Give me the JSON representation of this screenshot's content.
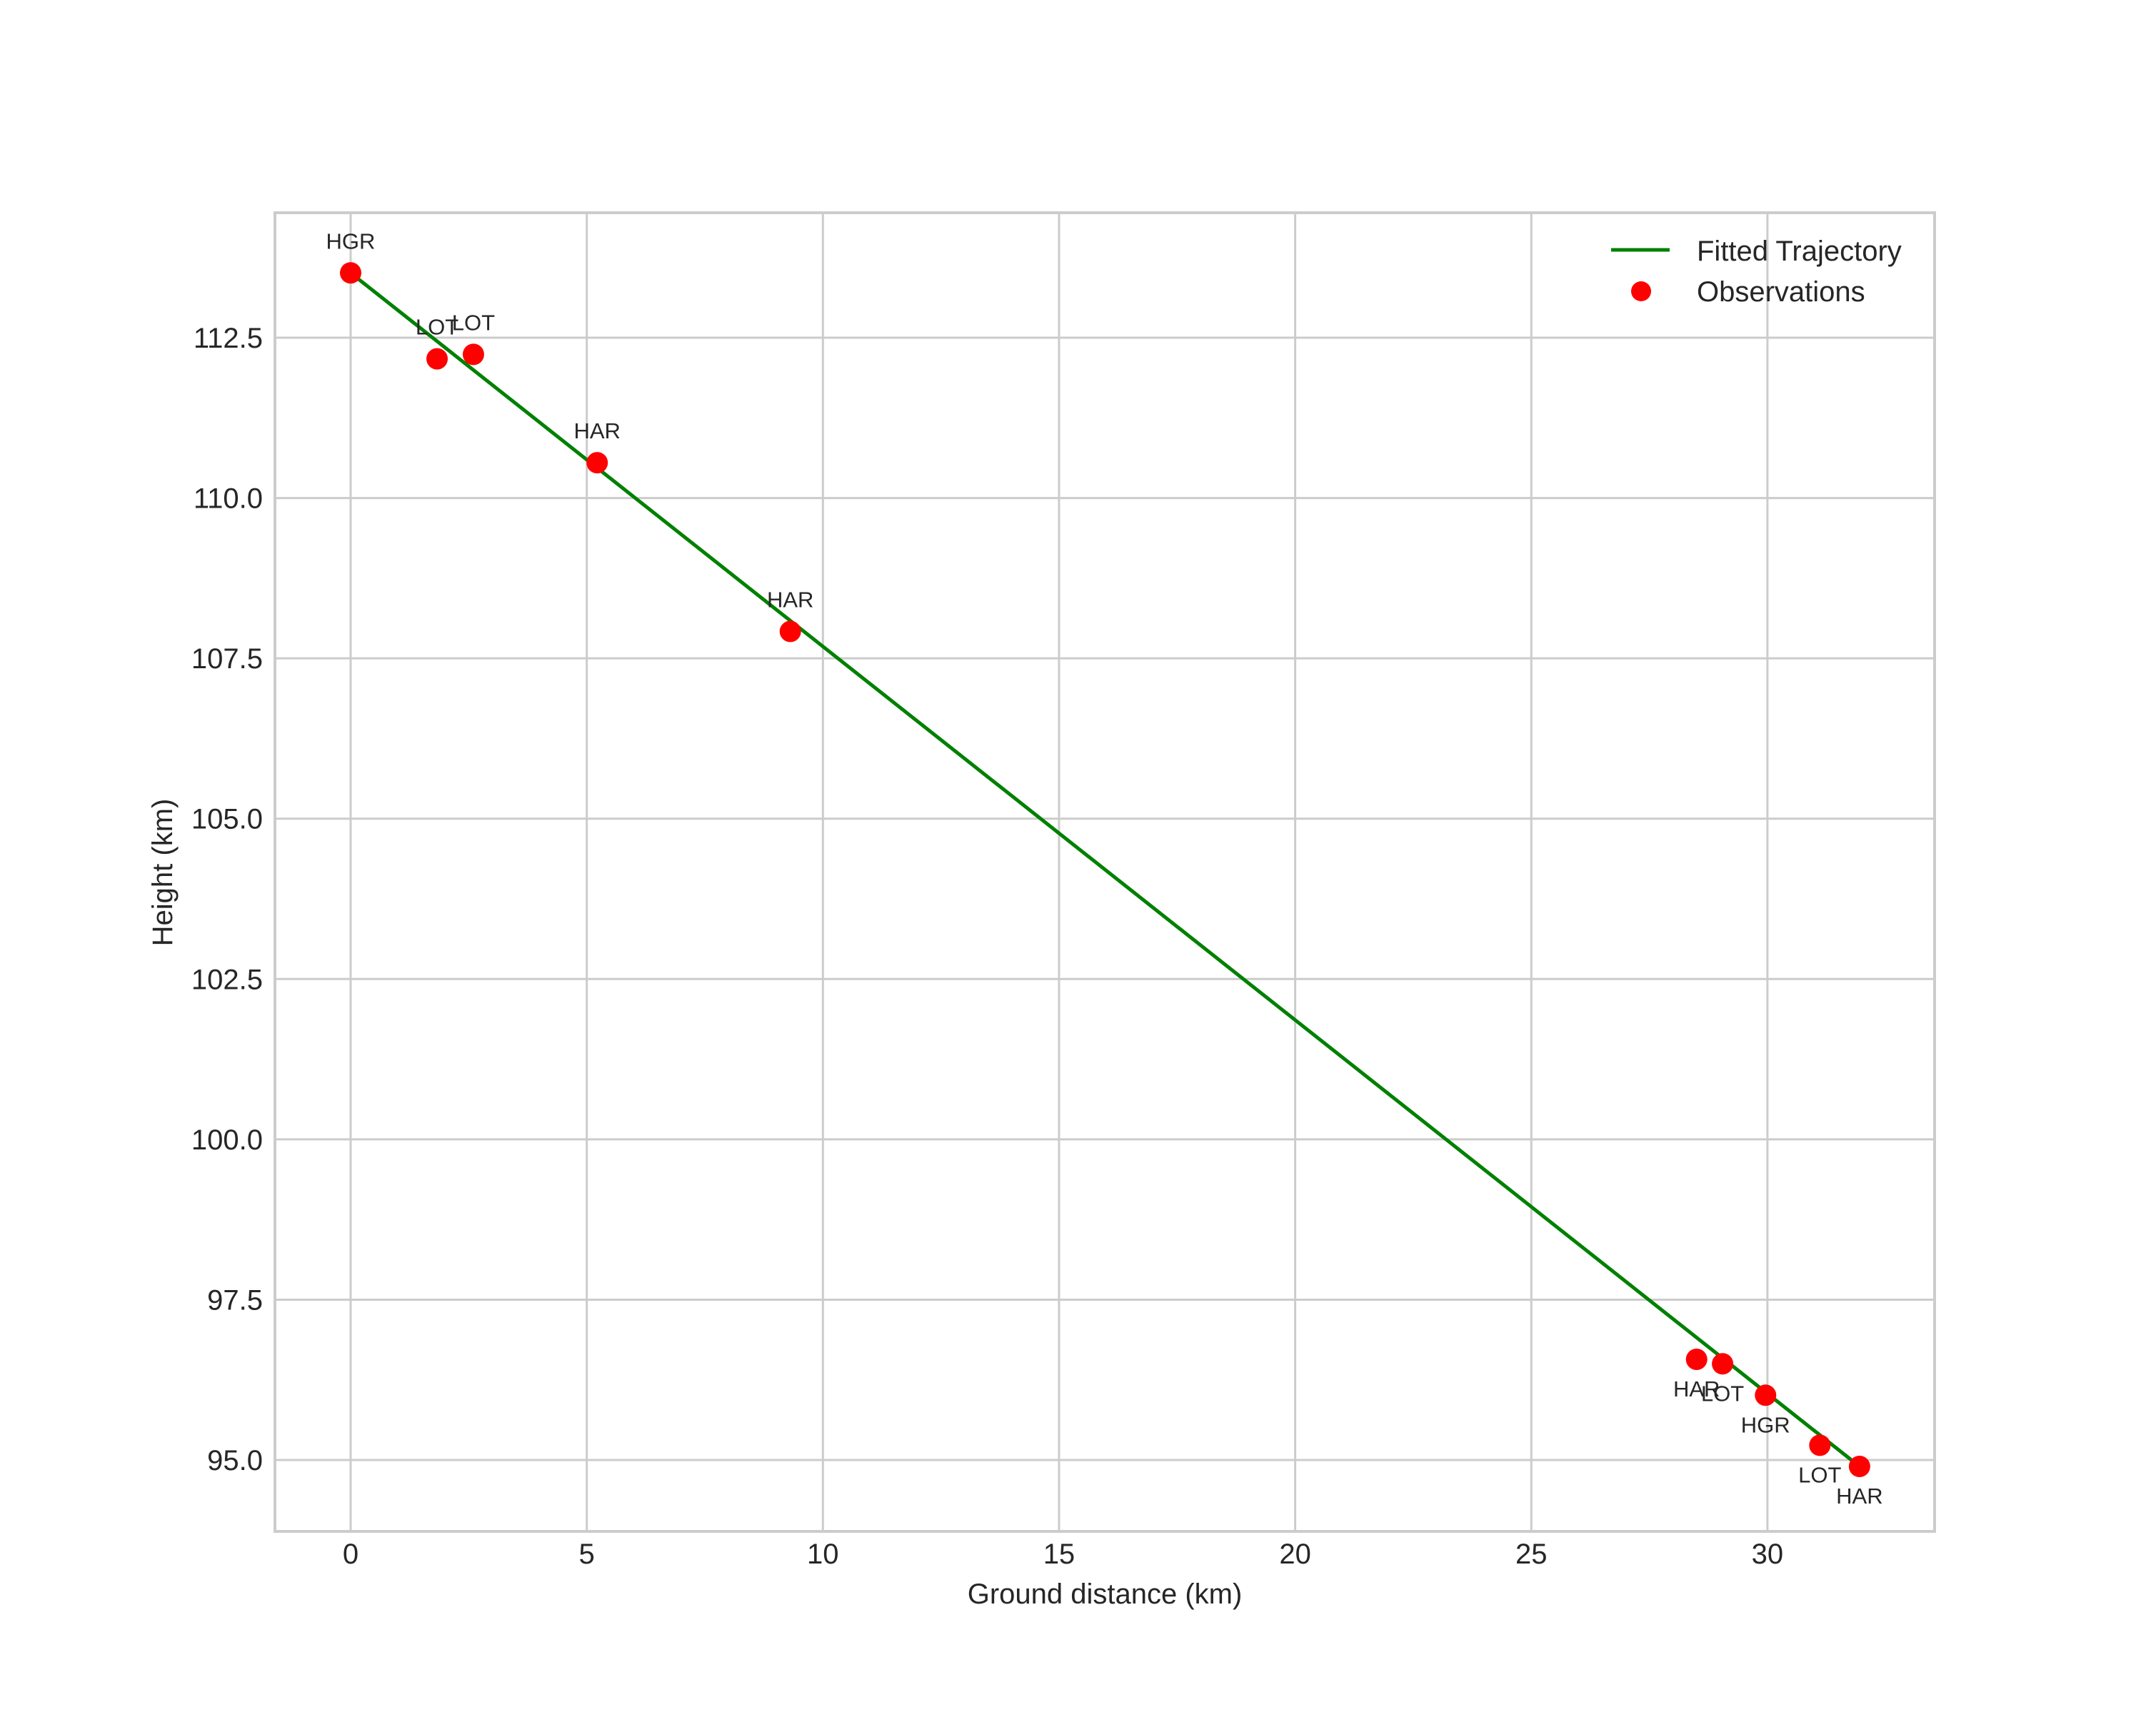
{
  "chart_data": {
    "type": "line",
    "title": "",
    "xlabel": "Ground distance (km)",
    "ylabel": "Height (km)",
    "xlim": [
      -1.6,
      33.5
    ],
    "ylim": [
      93.9,
      114.45
    ],
    "xticks": [
      0,
      5,
      10,
      15,
      20,
      25,
      30
    ],
    "xtick_labels": [
      "0",
      "5",
      "10",
      "15",
      "20",
      "25",
      "30"
    ],
    "yticks": [
      95.0,
      97.5,
      100.0,
      102.5,
      105.0,
      107.5,
      110.0,
      112.5
    ],
    "ytick_labels": [
      "95.0",
      "97.5",
      "100.0",
      "102.5",
      "105.0",
      "107.5",
      "110.0",
      "112.5"
    ],
    "grid": true,
    "legend_position": "upper right",
    "series": [
      {
        "name": "Fitted Trajectory",
        "kind": "line",
        "color": "#008000",
        "x": [
          0.0,
          31.95
        ],
        "y": [
          113.51,
          94.9
        ]
      },
      {
        "name": "Observations",
        "kind": "scatter",
        "color": "#ff0000",
        "points": [
          {
            "x": 0.0,
            "y": 113.51,
            "label": "HGR",
            "label_pos": "above"
          },
          {
            "x": 1.83,
            "y": 112.17,
            "label": "LOT",
            "label_pos": "above"
          },
          {
            "x": 2.6,
            "y": 112.24,
            "label": "LOT",
            "label_pos": "above"
          },
          {
            "x": 5.22,
            "y": 110.55,
            "label": "HAR",
            "label_pos": "above"
          },
          {
            "x": 9.31,
            "y": 107.92,
            "label": "HAR",
            "label_pos": "above"
          },
          {
            "x": 28.5,
            "y": 96.57,
            "label": "HAR",
            "label_pos": "below"
          },
          {
            "x": 29.05,
            "y": 96.5,
            "label": "LOT",
            "label_pos": "below"
          },
          {
            "x": 29.96,
            "y": 96.01,
            "label": "HGR",
            "label_pos": "below"
          },
          {
            "x": 31.11,
            "y": 95.23,
            "label": "LOT",
            "label_pos": "below"
          },
          {
            "x": 31.95,
            "y": 94.9,
            "label": "HAR",
            "label_pos": "below"
          }
        ]
      }
    ]
  },
  "legend": {
    "items": [
      {
        "label": "Fitted Trajectory",
        "marker": "line",
        "color": "#008000"
      },
      {
        "label": "Observations",
        "marker": "dot",
        "color": "#ff0000"
      }
    ]
  },
  "colors": {
    "grid": "#cccccc",
    "text": "#262626",
    "line": "#008000",
    "points": "#ff0000"
  }
}
